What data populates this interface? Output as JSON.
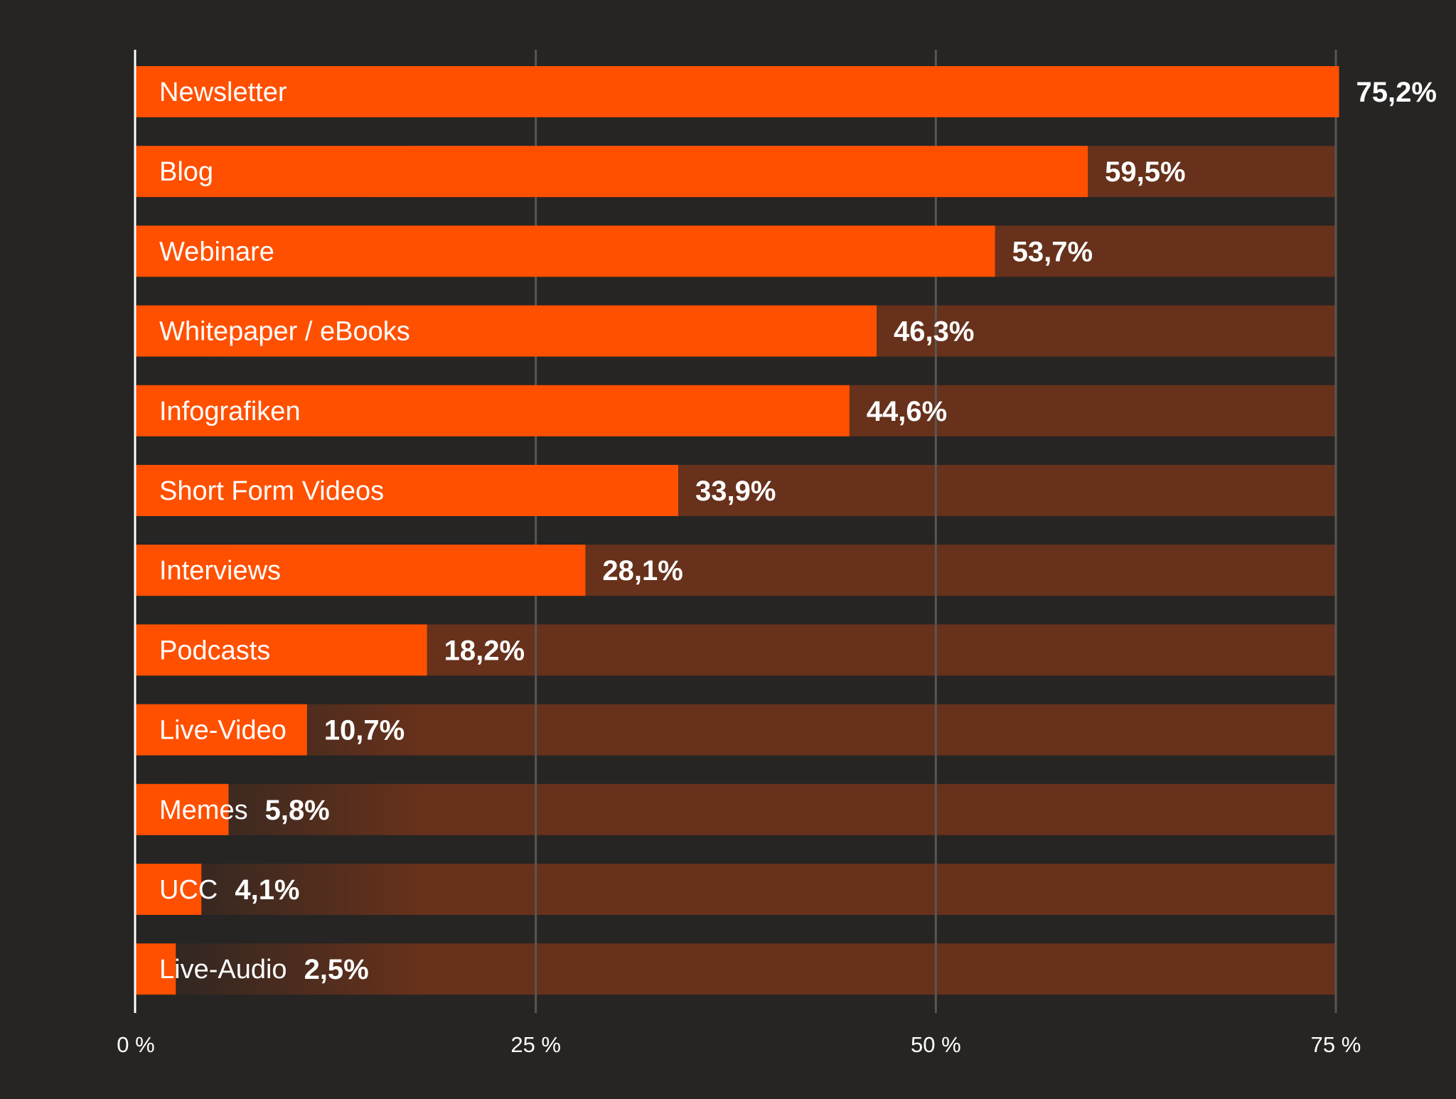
{
  "colors": {
    "background": "#262523",
    "bar": "#ff5000",
    "track": "#67311b",
    "grid": "#5a5652",
    "axis": "#ffffff",
    "text": "#ffffff"
  },
  "chart_data": {
    "type": "bar",
    "orientation": "horizontal",
    "categories": [
      "Newsletter",
      "Blog",
      "Webinare",
      "Whitepaper / eBooks",
      "Infografiken",
      "Short Form Videos",
      "Interviews",
      "Podcasts",
      "Live-Video",
      "Memes",
      "UCC",
      "Live-Audio"
    ],
    "values": [
      75.2,
      59.5,
      53.7,
      46.3,
      44.6,
      33.9,
      28.1,
      18.2,
      10.7,
      5.8,
      4.1,
      2.5
    ],
    "value_labels": [
      "75,2%",
      "59,5%",
      "53,7%",
      "46,3%",
      "44,6%",
      "33,9%",
      "28,1%",
      "18,2%",
      "10,7%",
      "5,8%",
      "4,1%",
      "2,5%"
    ],
    "xlim": [
      0,
      75
    ],
    "xticks": [
      0,
      25,
      50,
      75
    ],
    "xtick_labels": [
      "0 %",
      "25 %",
      "50 %",
      "75 %"
    ],
    "grid": true,
    "legend": false,
    "title": "",
    "xlabel": "",
    "ylabel": ""
  }
}
